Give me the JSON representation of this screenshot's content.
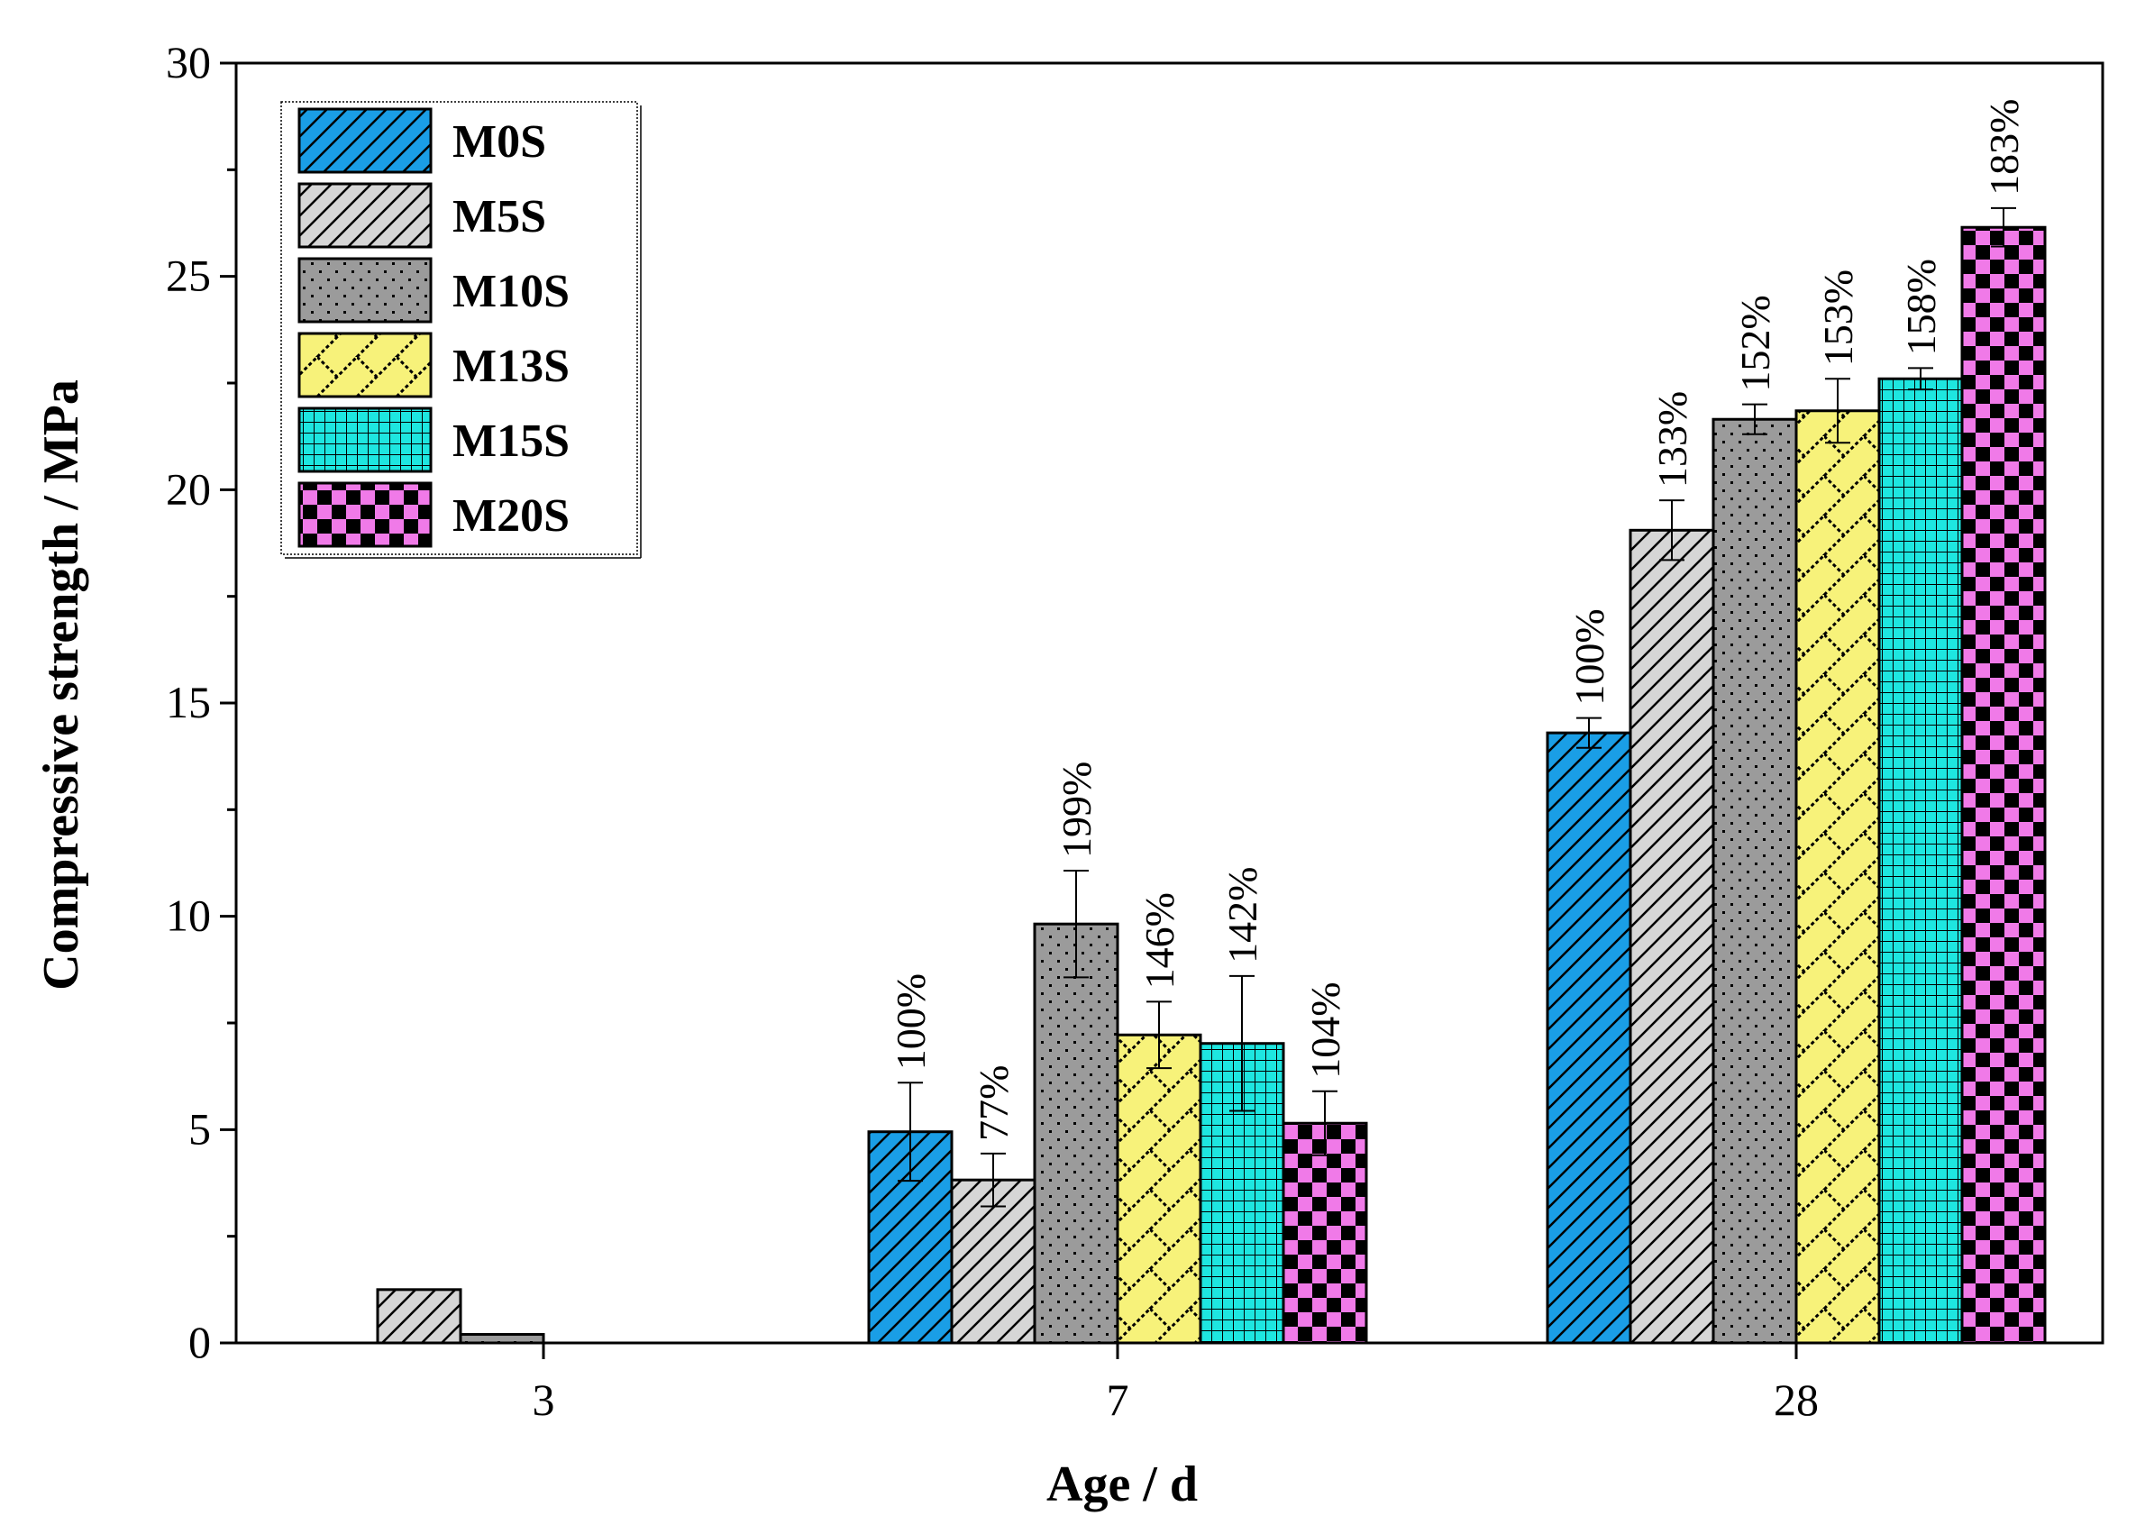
{
  "chart_data": {
    "type": "bar",
    "title": "",
    "xlabel": "Age / d",
    "ylabel": "Compressive strength / MPa",
    "ylim": [
      0,
      30
    ],
    "yticks": [
      0,
      5,
      10,
      15,
      20,
      25,
      30
    ],
    "categories": [
      "3",
      "7",
      "28"
    ],
    "legend_position": "top-left",
    "grid": false,
    "series": [
      {
        "name": "M0S",
        "color": "#1a9ee6",
        "pattern": "diagonal-lines",
        "values": [
          0,
          4.95,
          14.3
        ],
        "errors": [
          0,
          1.15,
          0.35
        ],
        "labels": [
          "",
          "100%",
          "100%"
        ]
      },
      {
        "name": "M5S",
        "color": "#d6d6d6",
        "pattern": "diagonal-lines",
        "values": [
          1.25,
          3.82,
          19.05
        ],
        "errors": [
          0,
          0.62,
          0.7
        ],
        "labels": [
          "",
          "77%",
          "133%"
        ]
      },
      {
        "name": "M10S",
        "color": "#9b9b9b",
        "pattern": "dots",
        "values": [
          0.2,
          9.82,
          21.65
        ],
        "errors": [
          0,
          1.25,
          0.35
        ],
        "labels": [
          "",
          "199%",
          "152%"
        ]
      },
      {
        "name": "M13S",
        "color": "#f7f27a",
        "pattern": "zigzag",
        "values": [
          0,
          7.22,
          21.85
        ],
        "errors": [
          0,
          0.78,
          0.75
        ],
        "labels": [
          "",
          "146%",
          "153%"
        ]
      },
      {
        "name": "M15S",
        "color": "#1ee6e0",
        "pattern": "grid",
        "values": [
          0,
          7.02,
          22.6
        ],
        "errors": [
          0,
          1.58,
          0.25
        ],
        "labels": [
          "",
          "142%",
          "158%"
        ]
      },
      {
        "name": "M20S",
        "color": "#f07ae8",
        "pattern": "checkerboard",
        "values": [
          0,
          5.15,
          26.15
        ],
        "errors": [
          0,
          0.75,
          0.45
        ],
        "labels": [
          "",
          "104%",
          "183%"
        ]
      }
    ]
  }
}
